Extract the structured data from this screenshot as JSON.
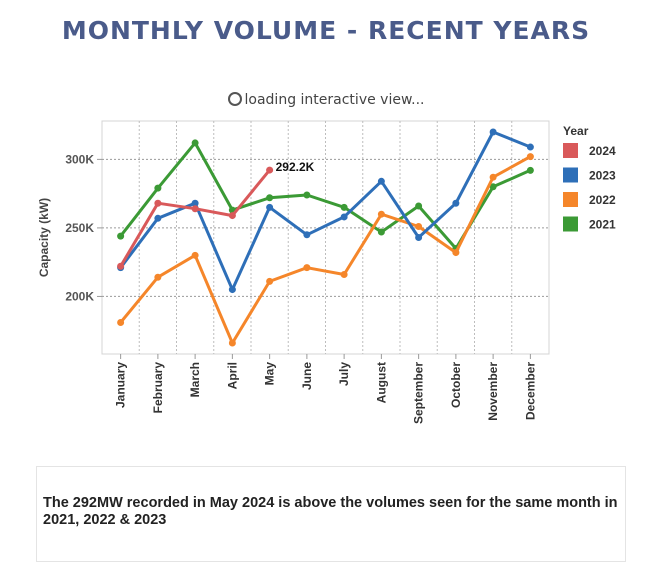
{
  "title": "MONTHLY VOLUME - RECENT YEARS",
  "loading_text": "loading interactive view...",
  "note_text": "The 292MW recorded in May 2024 is above the volumes seen for the same month in 2021, 2022 & 2023",
  "chart_data": {
    "type": "line",
    "title": "MONTHLY VOLUME - RECENT YEARS",
    "xlabel": "",
    "ylabel": "Capacity (kW)",
    "ylim": [
      158000,
      328000
    ],
    "yticks": [
      200000,
      250000,
      300000
    ],
    "ytick_labels": [
      "200K",
      "250K",
      "300K"
    ],
    "grid": true,
    "categories": [
      "January",
      "February",
      "March",
      "April",
      "May",
      "June",
      "July",
      "August",
      "September",
      "October",
      "November",
      "December"
    ],
    "legend_title": "Year",
    "legend_position": "right",
    "series": [
      {
        "name": "2024",
        "color": "#d9595a",
        "values": [
          222000,
          268000,
          264000,
          259000,
          292200,
          null,
          null,
          null,
          null,
          null,
          null,
          null
        ]
      },
      {
        "name": "2023",
        "color": "#2e6fb8",
        "values": [
          221000,
          257000,
          268000,
          205000,
          265000,
          245000,
          258000,
          284000,
          243000,
          268000,
          320000,
          309000
        ]
      },
      {
        "name": "2022",
        "color": "#f5862a",
        "values": [
          181000,
          214000,
          230000,
          166000,
          211000,
          221000,
          216000,
          260000,
          251000,
          232000,
          287000,
          302000
        ]
      },
      {
        "name": "2021",
        "color": "#3b9a35",
        "values": [
          244000,
          279000,
          312000,
          263000,
          272000,
          274000,
          265000,
          247000,
          266000,
          235000,
          280000,
          292000
        ]
      }
    ],
    "annotations": [
      {
        "series": "2024",
        "category": "May",
        "text": "292.2K"
      }
    ]
  }
}
